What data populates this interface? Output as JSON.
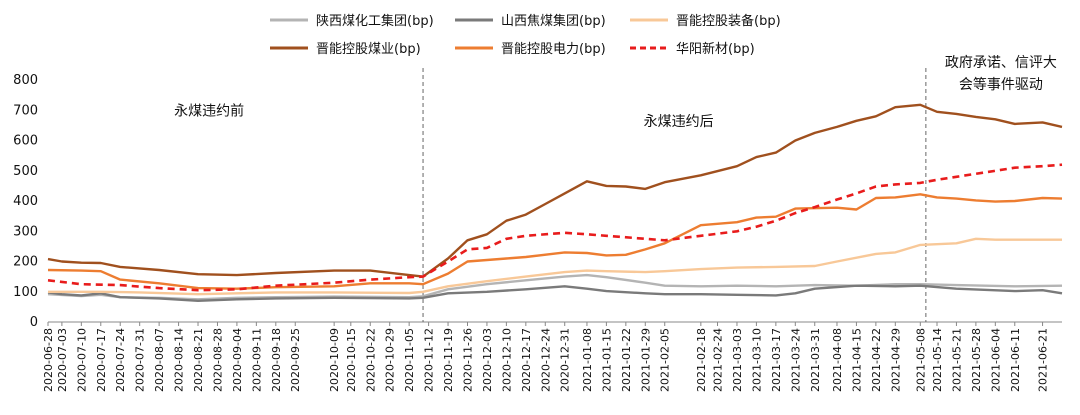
{
  "chart_data": {
    "type": "line",
    "ylim": [
      0,
      800
    ],
    "yticks": [
      0,
      100,
      200,
      300,
      400,
      500,
      600,
      700,
      800
    ],
    "date_range": [
      "2020-06-28",
      "2021-06-28"
    ],
    "xtick_labels": [
      "2020-06-28",
      "2020-07-03",
      "2020-07-10",
      "2020-07-17",
      "2020-07-24",
      "2020-07-31",
      "2020-08-07",
      "2020-08-14",
      "2020-08-21",
      "2020-08-28",
      "2020-09-04",
      "2020-09-11",
      "2020-09-18",
      "2020-09-25",
      "2020-10-09",
      "2020-10-15",
      "2020-10-22",
      "2020-10-29",
      "2020-11-05",
      "2020-11-12",
      "2020-11-19",
      "2020-11-26",
      "2020-12-03",
      "2020-12-10",
      "2020-12-17",
      "2020-12-24",
      "2020-12-31",
      "2021-01-08",
      "2021-01-15",
      "2021-01-22",
      "2021-01-29",
      "2021-02-05",
      "2021-02-18",
      "2021-02-24",
      "2021-03-03",
      "2021-03-10",
      "2021-03-17",
      "2021-03-24",
      "2021-03-31",
      "2021-04-08",
      "2021-04-15",
      "2021-04-22",
      "2021-04-29",
      "2021-05-08",
      "2021-05-14",
      "2021-05-21",
      "2021-05-28",
      "2021-06-04",
      "2021-06-11",
      "2021-06-21"
    ],
    "vlines": [
      "2020-11-10",
      "2021-05-10"
    ],
    "annotations": [
      {
        "text": "永煤违约前",
        "x": "2020-08-25",
        "y": 700
      },
      {
        "text": "永煤违约后",
        "x": "2021-02-10",
        "y": 665
      },
      {
        "line1": "政府承诺、信评大",
        "line2": "会等事件驱动",
        "x": "2021-06-06",
        "y": 800
      }
    ],
    "legend_placement": "top",
    "series": [
      {
        "name": "陕西煤化工集团(bp)",
        "color": "#b4b4b4",
        "dashed": false,
        "points": [
          [
            "2020-06-28",
            92
          ],
          [
            "2020-07-10",
            86
          ],
          [
            "2020-07-17",
            90
          ],
          [
            "2020-07-24",
            82
          ],
          [
            "2020-08-07",
            80
          ],
          [
            "2020-08-21",
            75
          ],
          [
            "2020-09-04",
            80
          ],
          [
            "2020-09-18",
            82
          ],
          [
            "2020-10-09",
            84
          ],
          [
            "2020-11-05",
            82
          ],
          [
            "2020-11-10",
            85
          ],
          [
            "2020-11-19",
            108
          ],
          [
            "2020-12-03",
            125
          ],
          [
            "2020-12-17",
            138
          ],
          [
            "2020-12-31",
            150
          ],
          [
            "2021-01-08",
            155
          ],
          [
            "2021-01-15",
            148
          ],
          [
            "2021-01-29",
            130
          ],
          [
            "2021-02-05",
            120
          ],
          [
            "2021-02-18",
            118
          ],
          [
            "2021-03-03",
            120
          ],
          [
            "2021-03-17",
            118
          ],
          [
            "2021-03-31",
            122
          ],
          [
            "2021-04-15",
            120
          ],
          [
            "2021-04-29",
            125
          ],
          [
            "2021-05-08",
            125
          ],
          [
            "2021-05-21",
            122
          ],
          [
            "2021-06-11",
            118
          ],
          [
            "2021-06-28",
            120
          ]
        ]
      },
      {
        "name": "山西焦煤集团(bp)",
        "color": "#7a7a7a",
        "dashed": false,
        "points": [
          [
            "2020-06-28",
            98
          ],
          [
            "2020-07-03",
            92
          ],
          [
            "2020-07-10",
            88
          ],
          [
            "2020-07-17",
            95
          ],
          [
            "2020-07-24",
            82
          ],
          [
            "2020-08-07",
            78
          ],
          [
            "2020-08-21",
            70
          ],
          [
            "2020-09-04",
            75
          ],
          [
            "2020-09-18",
            78
          ],
          [
            "2020-10-09",
            80
          ],
          [
            "2020-11-05",
            78
          ],
          [
            "2020-11-10",
            80
          ],
          [
            "2020-11-19",
            95
          ],
          [
            "2020-12-03",
            100
          ],
          [
            "2020-12-17",
            108
          ],
          [
            "2020-12-31",
            118
          ],
          [
            "2021-01-08",
            110
          ],
          [
            "2021-01-15",
            102
          ],
          [
            "2021-01-29",
            95
          ],
          [
            "2021-02-05",
            92
          ],
          [
            "2021-02-18",
            92
          ],
          [
            "2021-03-03",
            90
          ],
          [
            "2021-03-17",
            88
          ],
          [
            "2021-03-24",
            95
          ],
          [
            "2021-03-31",
            110
          ],
          [
            "2021-04-15",
            120
          ],
          [
            "2021-04-29",
            118
          ],
          [
            "2021-05-08",
            120
          ],
          [
            "2021-05-21",
            110
          ],
          [
            "2021-06-11",
            102
          ],
          [
            "2021-06-21",
            105
          ],
          [
            "2021-06-28",
            95
          ]
        ]
      },
      {
        "name": "晋能控股装备(bp)",
        "color": "#f8c898",
        "dashed": false,
        "points": [
          [
            "2020-06-28",
            100
          ],
          [
            "2020-07-17",
            100
          ],
          [
            "2020-07-31",
            98
          ],
          [
            "2020-08-21",
            92
          ],
          [
            "2020-09-04",
            95
          ],
          [
            "2020-09-18",
            98
          ],
          [
            "2020-10-09",
            98
          ],
          [
            "2020-11-05",
            96
          ],
          [
            "2020-11-10",
            100
          ],
          [
            "2020-11-19",
            118
          ],
          [
            "2020-12-03",
            135
          ],
          [
            "2020-12-17",
            150
          ],
          [
            "2020-12-31",
            165
          ],
          [
            "2021-01-08",
            170
          ],
          [
            "2021-01-15",
            168
          ],
          [
            "2021-01-29",
            165
          ],
          [
            "2021-02-05",
            168
          ],
          [
            "2021-02-18",
            175
          ],
          [
            "2021-03-03",
            180
          ],
          [
            "2021-03-17",
            182
          ],
          [
            "2021-03-31",
            185
          ],
          [
            "2021-04-08",
            200
          ],
          [
            "2021-04-22",
            225
          ],
          [
            "2021-04-29",
            230
          ],
          [
            "2021-05-08",
            255
          ],
          [
            "2021-05-21",
            260
          ],
          [
            "2021-05-28",
            275
          ],
          [
            "2021-06-04",
            272
          ],
          [
            "2021-06-28",
            272
          ]
        ]
      },
      {
        "name": "晋能控股煤业(bp)",
        "color": "#a0501e",
        "dashed": false,
        "points": [
          [
            "2020-06-28",
            208
          ],
          [
            "2020-07-03",
            200
          ],
          [
            "2020-07-10",
            196
          ],
          [
            "2020-07-17",
            195
          ],
          [
            "2020-07-24",
            182
          ],
          [
            "2020-08-07",
            172
          ],
          [
            "2020-08-21",
            158
          ],
          [
            "2020-09-04",
            155
          ],
          [
            "2020-09-18",
            162
          ],
          [
            "2020-10-09",
            170
          ],
          [
            "2020-10-22",
            170
          ],
          [
            "2020-11-05",
            155
          ],
          [
            "2020-11-10",
            150
          ],
          [
            "2020-11-19",
            210
          ],
          [
            "2020-11-26",
            270
          ],
          [
            "2020-12-03",
            290
          ],
          [
            "2020-12-10",
            335
          ],
          [
            "2020-12-17",
            355
          ],
          [
            "2020-12-24",
            390
          ],
          [
            "2020-12-31",
            425
          ],
          [
            "2021-01-08",
            465
          ],
          [
            "2021-01-15",
            450
          ],
          [
            "2021-01-22",
            448
          ],
          [
            "2021-01-29",
            440
          ],
          [
            "2021-02-05",
            462
          ],
          [
            "2021-02-18",
            485
          ],
          [
            "2021-03-03",
            515
          ],
          [
            "2021-03-10",
            545
          ],
          [
            "2021-03-17",
            560
          ],
          [
            "2021-03-24",
            600
          ],
          [
            "2021-03-31",
            625
          ],
          [
            "2021-04-08",
            645
          ],
          [
            "2021-04-15",
            665
          ],
          [
            "2021-04-22",
            680
          ],
          [
            "2021-04-29",
            710
          ],
          [
            "2021-05-08",
            718
          ],
          [
            "2021-05-14",
            695
          ],
          [
            "2021-05-21",
            688
          ],
          [
            "2021-05-28",
            678
          ],
          [
            "2021-06-04",
            670
          ],
          [
            "2021-06-11",
            655
          ],
          [
            "2021-06-21",
            660
          ],
          [
            "2021-06-28",
            645
          ]
        ]
      },
      {
        "name": "晋能控股电力(bp)",
        "color": "#ed7d31",
        "dashed": false,
        "points": [
          [
            "2020-06-28",
            172
          ],
          [
            "2020-07-10",
            170
          ],
          [
            "2020-07-17",
            168
          ],
          [
            "2020-07-24",
            140
          ],
          [
            "2020-08-07",
            128
          ],
          [
            "2020-08-21",
            112
          ],
          [
            "2020-09-04",
            110
          ],
          [
            "2020-09-18",
            115
          ],
          [
            "2020-10-09",
            118
          ],
          [
            "2020-10-22",
            128
          ],
          [
            "2020-11-05",
            128
          ],
          [
            "2020-11-10",
            125
          ],
          [
            "2020-11-19",
            160
          ],
          [
            "2020-11-26",
            200
          ],
          [
            "2020-12-10",
            210
          ],
          [
            "2020-12-17",
            215
          ],
          [
            "2020-12-31",
            230
          ],
          [
            "2021-01-08",
            228
          ],
          [
            "2021-01-15",
            220
          ],
          [
            "2021-01-22",
            222
          ],
          [
            "2021-01-29",
            240
          ],
          [
            "2021-02-05",
            260
          ],
          [
            "2021-02-18",
            320
          ],
          [
            "2021-03-03",
            330
          ],
          [
            "2021-03-10",
            345
          ],
          [
            "2021-03-17",
            348
          ],
          [
            "2021-03-24",
            375
          ],
          [
            "2021-04-08",
            378
          ],
          [
            "2021-04-15",
            372
          ],
          [
            "2021-04-22",
            410
          ],
          [
            "2021-04-29",
            412
          ],
          [
            "2021-05-08",
            422
          ],
          [
            "2021-05-14",
            412
          ],
          [
            "2021-05-21",
            408
          ],
          [
            "2021-05-28",
            402
          ],
          [
            "2021-06-04",
            398
          ],
          [
            "2021-06-11",
            400
          ],
          [
            "2021-06-21",
            410
          ],
          [
            "2021-06-28",
            408
          ]
        ]
      },
      {
        "name": "华阳新材(bp)",
        "color": "#e81c1c",
        "dashed": true,
        "points": [
          [
            "2020-06-28",
            138
          ],
          [
            "2020-07-10",
            125
          ],
          [
            "2020-07-24",
            122
          ],
          [
            "2020-08-07",
            112
          ],
          [
            "2020-08-21",
            105
          ],
          [
            "2020-09-04",
            108
          ],
          [
            "2020-09-18",
            120
          ],
          [
            "2020-10-09",
            130
          ],
          [
            "2020-10-22",
            140
          ],
          [
            "2020-11-05",
            148
          ],
          [
            "2020-11-10",
            150
          ],
          [
            "2020-11-19",
            200
          ],
          [
            "2020-11-26",
            240
          ],
          [
            "2020-12-03",
            245
          ],
          [
            "2020-12-10",
            275
          ],
          [
            "2020-12-17",
            285
          ],
          [
            "2020-12-31",
            295
          ],
          [
            "2021-01-08",
            290
          ],
          [
            "2021-01-15",
            285
          ],
          [
            "2021-01-29",
            275
          ],
          [
            "2021-02-05",
            270
          ],
          [
            "2021-02-18",
            285
          ],
          [
            "2021-03-03",
            300
          ],
          [
            "2021-03-10",
            315
          ],
          [
            "2021-03-17",
            335
          ],
          [
            "2021-03-24",
            360
          ],
          [
            "2021-03-31",
            380
          ],
          [
            "2021-04-08",
            405
          ],
          [
            "2021-04-15",
            425
          ],
          [
            "2021-04-22",
            448
          ],
          [
            "2021-04-29",
            455
          ],
          [
            "2021-05-08",
            460
          ],
          [
            "2021-05-14",
            470
          ],
          [
            "2021-05-21",
            480
          ],
          [
            "2021-05-28",
            490
          ],
          [
            "2021-06-04",
            500
          ],
          [
            "2021-06-11",
            510
          ],
          [
            "2021-06-21",
            515
          ],
          [
            "2021-06-28",
            520
          ]
        ]
      }
    ]
  }
}
